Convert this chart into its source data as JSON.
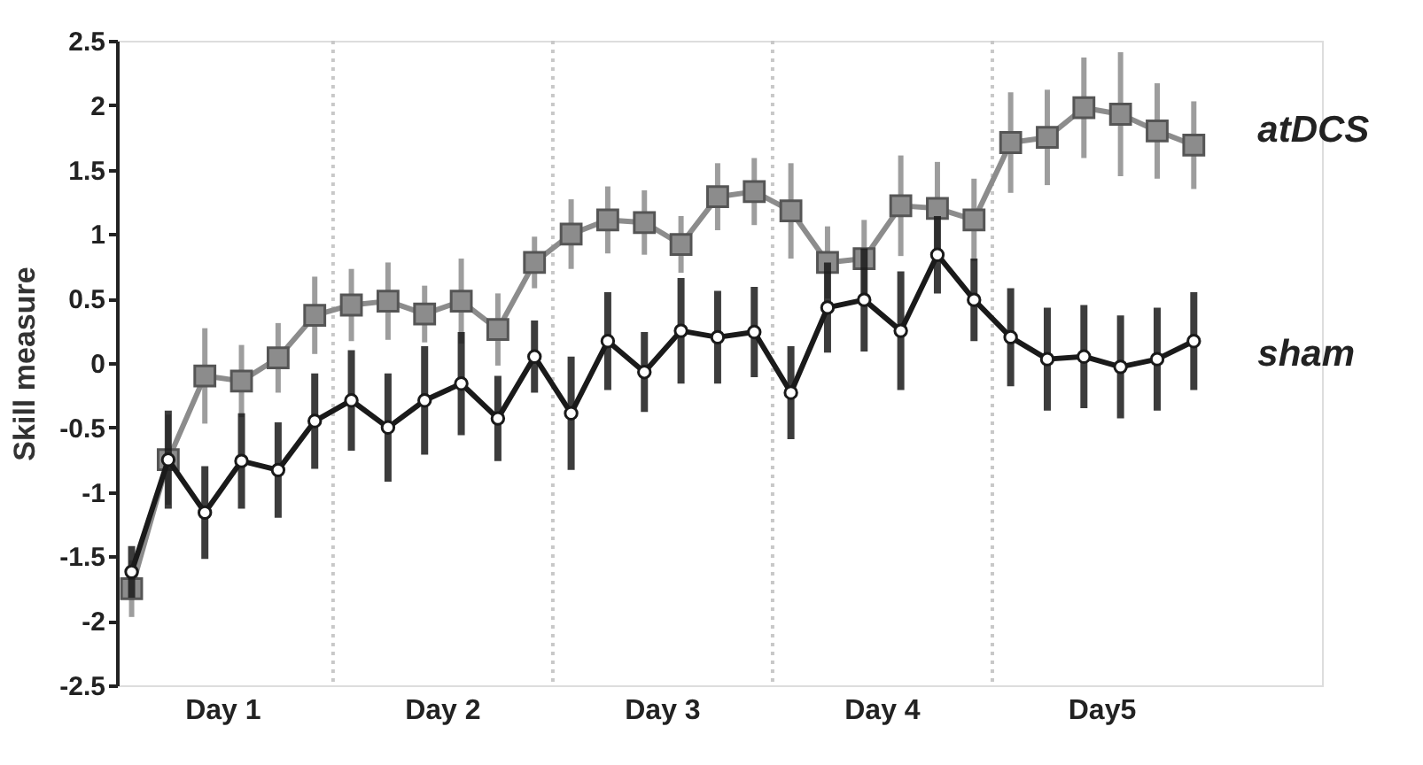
{
  "chart_data": {
    "type": "line",
    "ylabel": "Skill measure",
    "categories": [
      null,
      null,
      null,
      null,
      null,
      null,
      null,
      null,
      null,
      null,
      null,
      null,
      null,
      null,
      null,
      null,
      null,
      null,
      null,
      null,
      null,
      null,
      null,
      null,
      null,
      null,
      null,
      null,
      null,
      null
    ],
    "annotations": [
      "Day 1",
      "Day 2",
      "Day 3",
      "Day 4",
      "Day5"
    ],
    "ylim": [
      -2.5,
      2.5
    ],
    "yticks": [
      -2.5,
      -2,
      -1.5,
      -1,
      -0.5,
      0,
      0.5,
      1,
      1.5,
      2,
      2.5
    ],
    "grid": false,
    "legend": false,
    "line_style": "solid",
    "series": [
      {
        "name": "atDCS",
        "color": "#8c8c8c",
        "marker": "square",
        "values": [
          -1.75,
          -0.75,
          -0.1,
          -0.14,
          0.04,
          0.37,
          0.45,
          0.48,
          0.38,
          0.48,
          0.26,
          0.78,
          1.0,
          1.11,
          1.09,
          0.92,
          1.29,
          1.33,
          1.18,
          0.78,
          0.81,
          1.22,
          1.2,
          1.11,
          1.71,
          1.75,
          1.98,
          1.93,
          1.8,
          1.69
        ],
        "errors": [
          0.22,
          0.35,
          0.37,
          0.28,
          0.27,
          0.3,
          0.28,
          0.3,
          0.22,
          0.33,
          0.28,
          0.2,
          0.27,
          0.26,
          0.25,
          0.22,
          0.26,
          0.26,
          0.37,
          0.28,
          0.3,
          0.39,
          0.36,
          0.32,
          0.39,
          0.37,
          0.39,
          0.48,
          0.37,
          0.34
        ]
      },
      {
        "name": "sham",
        "color": "#1a1a1a",
        "marker": "circle",
        "values": [
          -1.62,
          -0.75,
          -1.16,
          -0.76,
          -0.83,
          -0.45,
          -0.29,
          -0.5,
          -0.29,
          -0.16,
          -0.43,
          0.05,
          -0.39,
          0.17,
          -0.07,
          0.25,
          0.2,
          0.24,
          -0.23,
          0.43,
          0.49,
          0.25,
          0.84,
          0.49,
          0.2,
          0.03,
          0.05,
          -0.03,
          0.03,
          0.17
        ],
        "errors": [
          0.2,
          0.38,
          0.36,
          0.37,
          0.37,
          0.37,
          0.39,
          0.42,
          0.42,
          0.4,
          0.33,
          0.28,
          0.44,
          0.38,
          0.31,
          0.41,
          0.36,
          0.35,
          0.36,
          0.35,
          0.4,
          0.46,
          0.3,
          0.32,
          0.38,
          0.4,
          0.4,
          0.4,
          0.4,
          0.38
        ]
      }
    ]
  }
}
